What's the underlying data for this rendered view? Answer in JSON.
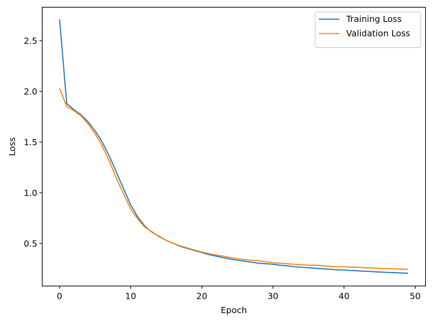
{
  "chart_data": {
    "type": "line",
    "title": "",
    "xlabel": "Epoch",
    "ylabel": "Loss",
    "xlim": [
      -2.45,
      51.45
    ],
    "ylim": [
      0.08,
      2.83
    ],
    "xticks": [
      0,
      10,
      20,
      30,
      40,
      50
    ],
    "yticks": [
      0.5,
      1.0,
      1.5,
      2.0,
      2.5
    ],
    "xtick_labels": [
      "0",
      "10",
      "20",
      "30",
      "40",
      "50"
    ],
    "ytick_labels": [
      "0.5",
      "1.0",
      "1.5",
      "2.0",
      "2.5"
    ],
    "grid": false,
    "legend_position": "upper right",
    "x": [
      0,
      1,
      2,
      3,
      4,
      5,
      6,
      7,
      8,
      9,
      10,
      11,
      12,
      13,
      14,
      15,
      16,
      17,
      18,
      19,
      20,
      21,
      22,
      23,
      24,
      25,
      26,
      27,
      28,
      29,
      30,
      31,
      32,
      33,
      34,
      35,
      36,
      37,
      38,
      39,
      40,
      41,
      42,
      43,
      44,
      45,
      46,
      47,
      48,
      49
    ],
    "series": [
      {
        "name": "Training Loss",
        "color": "#1f77b4",
        "values": [
          2.71,
          1.88,
          1.82,
          1.77,
          1.7,
          1.61,
          1.5,
          1.36,
          1.2,
          1.04,
          0.88,
          0.76,
          0.67,
          0.61,
          0.57,
          0.53,
          0.5,
          0.47,
          0.45,
          0.43,
          0.41,
          0.39,
          0.375,
          0.36,
          0.345,
          0.335,
          0.325,
          0.315,
          0.305,
          0.3,
          0.295,
          0.285,
          0.28,
          0.27,
          0.265,
          0.26,
          0.255,
          0.25,
          0.245,
          0.24,
          0.237,
          0.233,
          0.23,
          0.225,
          0.222,
          0.218,
          0.215,
          0.212,
          0.209,
          0.206
        ]
      },
      {
        "name": "Validation Loss",
        "color": "#ff7f0e",
        "values": [
          2.03,
          1.85,
          1.81,
          1.76,
          1.68,
          1.58,
          1.46,
          1.31,
          1.14,
          0.99,
          0.84,
          0.74,
          0.66,
          0.615,
          0.565,
          0.53,
          0.5,
          0.475,
          0.455,
          0.435,
          0.415,
          0.4,
          0.385,
          0.375,
          0.36,
          0.35,
          0.34,
          0.335,
          0.33,
          0.32,
          0.31,
          0.305,
          0.3,
          0.295,
          0.29,
          0.285,
          0.285,
          0.28,
          0.275,
          0.27,
          0.27,
          0.267,
          0.264,
          0.26,
          0.258,
          0.255,
          0.252,
          0.25,
          0.247,
          0.244
        ]
      }
    ]
  }
}
